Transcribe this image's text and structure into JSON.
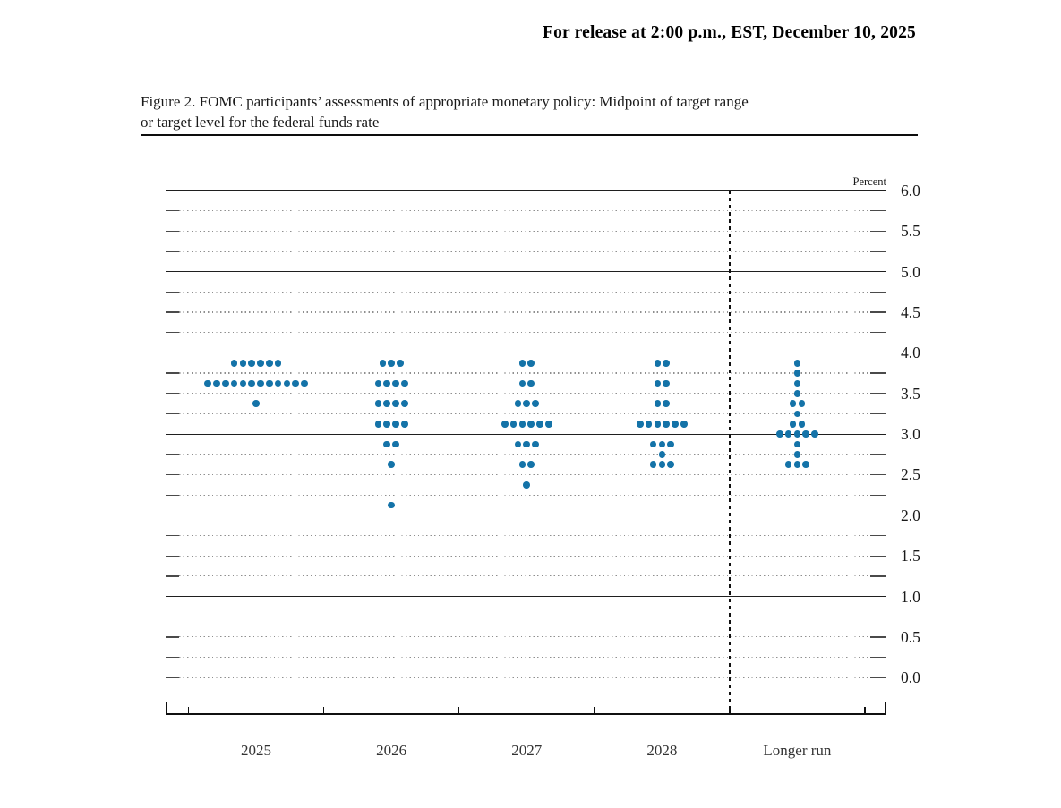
{
  "page": {
    "release_line": "For release at 2:00 p.m., EST, December 10, 2025",
    "figure_title_line1": "Figure 2. FOMC participants’ assessments of appropriate monetary policy: Midpoint of target range",
    "figure_title_line2": "or target level for the federal funds rate"
  },
  "chart_data": {
    "type": "scatter",
    "subtype": "fomc-dot-plot",
    "unit_label": "Percent",
    "categories": [
      "2025",
      "2026",
      "2027",
      "2028",
      "Longer run"
    ],
    "ylim": [
      0.0,
      6.0
    ],
    "ytick_interval": 0.5,
    "ytick_labels": [
      "6.0",
      "5.5",
      "5.0",
      "4.5",
      "4.0",
      "3.5",
      "3.0",
      "2.5",
      "2.0",
      "1.5",
      "1.0",
      "0.5",
      "0.0"
    ],
    "gridlines": {
      "dotted_every": 0.25,
      "solid_at": [
        1.0,
        2.0,
        3.0,
        4.0,
        5.0,
        6.0
      ]
    },
    "legend_position": "none",
    "dot_color": "#1473a8",
    "participants_per_year": 19,
    "series": [
      {
        "category": "2025",
        "dots": [
          {
            "rate": 3.875,
            "count": 6
          },
          {
            "rate": 3.625,
            "count": 12
          },
          {
            "rate": 3.375,
            "count": 1
          }
        ]
      },
      {
        "category": "2026",
        "dots": [
          {
            "rate": 3.875,
            "count": 3
          },
          {
            "rate": 3.625,
            "count": 4
          },
          {
            "rate": 3.375,
            "count": 4
          },
          {
            "rate": 3.125,
            "count": 4
          },
          {
            "rate": 2.875,
            "count": 2
          },
          {
            "rate": 2.625,
            "count": 1
          },
          {
            "rate": 2.125,
            "count": 1
          }
        ]
      },
      {
        "category": "2027",
        "dots": [
          {
            "rate": 3.875,
            "count": 2
          },
          {
            "rate": 3.625,
            "count": 2
          },
          {
            "rate": 3.375,
            "count": 3
          },
          {
            "rate": 3.125,
            "count": 6
          },
          {
            "rate": 2.875,
            "count": 3
          },
          {
            "rate": 2.625,
            "count": 2
          },
          {
            "rate": 2.375,
            "count": 1
          }
        ]
      },
      {
        "category": "2028",
        "dots": [
          {
            "rate": 3.875,
            "count": 2
          },
          {
            "rate": 3.625,
            "count": 2
          },
          {
            "rate": 3.375,
            "count": 2
          },
          {
            "rate": 3.125,
            "count": 6
          },
          {
            "rate": 2.875,
            "count": 3
          },
          {
            "rate": 2.75,
            "count": 1
          },
          {
            "rate": 2.625,
            "count": 3
          }
        ]
      },
      {
        "category": "Longer run",
        "dots": [
          {
            "rate": 3.875,
            "count": 1
          },
          {
            "rate": 3.75,
            "count": 1
          },
          {
            "rate": 3.625,
            "count": 1
          },
          {
            "rate": 3.5,
            "count": 1
          },
          {
            "rate": 3.375,
            "count": 2
          },
          {
            "rate": 3.25,
            "count": 1
          },
          {
            "rate": 3.125,
            "count": 2
          },
          {
            "rate": 3.0,
            "count": 5
          },
          {
            "rate": 2.875,
            "count": 1
          },
          {
            "rate": 2.75,
            "count": 1
          },
          {
            "rate": 2.625,
            "count": 3
          }
        ]
      }
    ]
  }
}
